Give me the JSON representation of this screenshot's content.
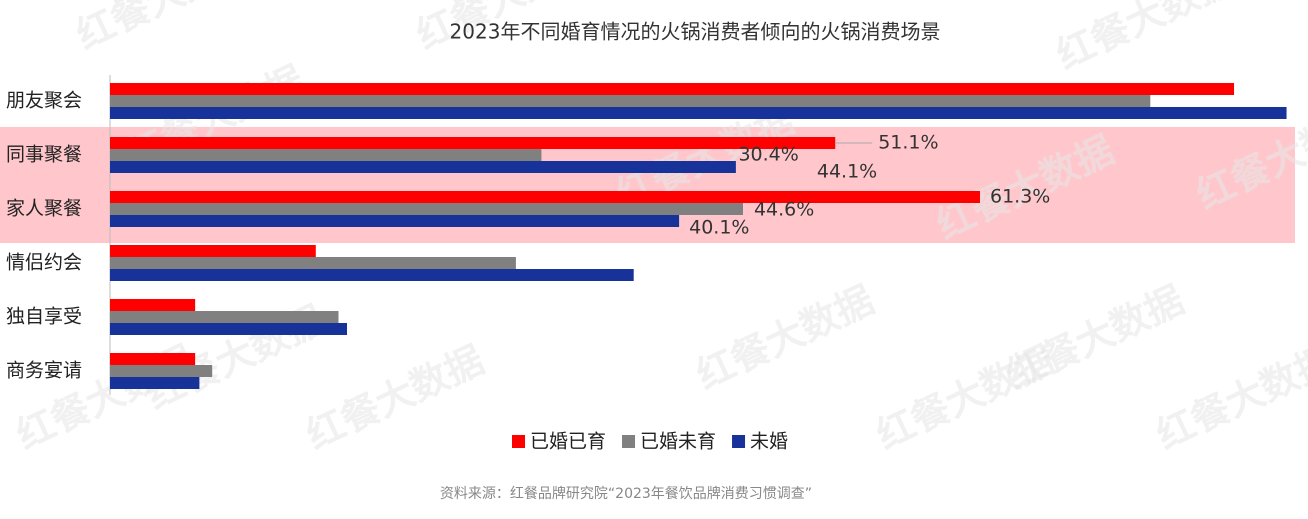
{
  "chart_data": {
    "type": "hbar",
    "title": "2023年不同婚育情况的火锅消费者倾向的火锅消费场景",
    "source": "资料来源：红餐品牌研究院“2023年餐饮品牌消费习惯调查”",
    "watermark": "红餐大数据",
    "categories": [
      "朋友聚会",
      "同事聚餐",
      "家人聚餐",
      "情侣约会",
      "独自享受",
      "商务宴请"
    ],
    "xlim": [
      0,
      84.2
    ],
    "legend": "bottom",
    "series": [
      {
        "name": "已婚已育",
        "color": "#ff0000",
        "values": [
          79.2,
          51.1,
          61.3,
          14.5,
          6.0,
          6.0
        ],
        "value_labels": [
          null,
          "51.1%",
          "61.3%",
          null,
          null,
          null
        ]
      },
      {
        "name": "已婚未育",
        "color": "#808080",
        "values": [
          73.3,
          30.4,
          44.6,
          28.6,
          16.1,
          7.2
        ],
        "value_labels": [
          null,
          "30.4%",
          "44.6%",
          null,
          null,
          null
        ]
      },
      {
        "name": "未婚",
        "color": "#17339a",
        "values": [
          82.9,
          44.1,
          40.1,
          36.9,
          16.7,
          6.3
        ],
        "value_labels": [
          null,
          "44.1%",
          "40.1%",
          null,
          null,
          null
        ]
      }
    ]
  }
}
